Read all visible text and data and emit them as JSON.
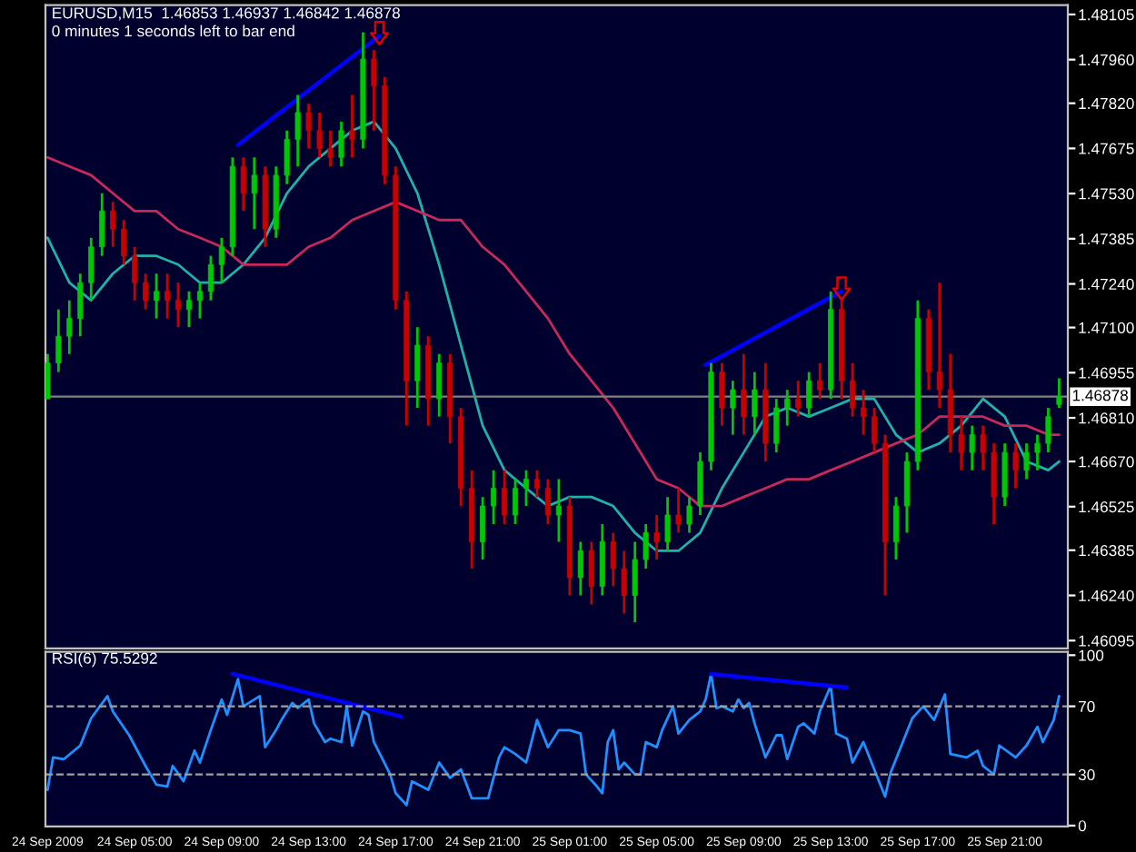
{
  "chart_data": [
    {
      "type": "candlestick",
      "annotations": [
        "EURUSD,M15  1.46853 1.46937 1.46842 1.46878",
        "0 minutes 1 seconds left to bar end"
      ],
      "x": [
        "2009-09-24T01:00",
        "2009-09-24T01:30",
        "2009-09-24T02:00",
        "2009-09-24T02:30",
        "2009-09-24T03:00",
        "2009-09-24T03:30",
        "2009-09-24T04:00",
        "2009-09-24T04:30",
        "2009-09-24T05:00",
        "2009-09-24T05:30",
        "2009-09-24T06:00",
        "2009-09-24T06:30",
        "2009-09-24T07:00",
        "2009-09-24T07:30",
        "2009-09-24T08:00",
        "2009-09-24T08:30",
        "2009-09-24T09:00",
        "2009-09-24T09:30",
        "2009-09-24T10:00",
        "2009-09-24T10:30",
        "2009-09-24T11:00",
        "2009-09-24T11:30",
        "2009-09-24T12:00",
        "2009-09-24T12:30",
        "2009-09-24T13:00",
        "2009-09-24T13:30",
        "2009-09-24T14:00",
        "2009-09-24T14:30",
        "2009-09-24T15:00",
        "2009-09-24T15:30",
        "2009-09-24T16:00",
        "2009-09-24T16:30",
        "2009-09-24T17:00",
        "2009-09-24T17:30",
        "2009-09-24T18:00",
        "2009-09-24T18:30",
        "2009-09-24T19:00",
        "2009-09-24T19:30",
        "2009-09-24T20:00",
        "2009-09-24T20:30",
        "2009-09-24T21:00",
        "2009-09-24T21:30",
        "2009-09-24T22:00",
        "2009-09-24T22:30",
        "2009-09-24T23:00",
        "2009-09-24T23:30",
        "2009-09-25T00:00",
        "2009-09-25T00:30",
        "2009-09-25T01:00",
        "2009-09-25T01:30",
        "2009-09-25T02:00",
        "2009-09-25T02:30",
        "2009-09-25T03:00",
        "2009-09-25T03:30",
        "2009-09-25T04:00",
        "2009-09-25T04:30",
        "2009-09-25T05:00",
        "2009-09-25T05:30",
        "2009-09-25T06:00",
        "2009-09-25T06:30",
        "2009-09-25T07:00",
        "2009-09-25T07:30",
        "2009-09-25T08:00",
        "2009-09-25T08:30",
        "2009-09-25T09:00",
        "2009-09-25T09:30",
        "2009-09-25T10:00",
        "2009-09-25T10:30",
        "2009-09-25T11:00",
        "2009-09-25T11:30",
        "2009-09-25T12:00",
        "2009-09-25T12:30",
        "2009-09-25T13:00",
        "2009-09-25T13:30",
        "2009-09-25T14:00",
        "2009-09-25T14:30",
        "2009-09-25T15:00",
        "2009-09-25T15:30",
        "2009-09-25T16:00",
        "2009-09-25T16:30",
        "2009-09-25T17:00",
        "2009-09-25T17:30",
        "2009-09-25T18:00",
        "2009-09-25T18:30",
        "2009-09-25T19:00",
        "2009-09-25T19:30",
        "2009-09-25T20:00",
        "2009-09-25T20:30",
        "2009-09-25T21:00",
        "2009-09-25T21:30",
        "2009-09-25T22:00",
        "2009-09-25T22:30",
        "2009-09-25T23:00",
        "2009-09-25T23:30"
      ],
      "ohlc": [
        [
          1.46871,
          1.47015,
          1.46871,
          1.46986
        ],
        [
          1.46986,
          1.47158,
          1.46957,
          1.47072
        ],
        [
          1.47072,
          1.47187,
          1.47015,
          1.47129
        ],
        [
          1.47129,
          1.47273,
          1.47072,
          1.47244
        ],
        [
          1.47244,
          1.47388,
          1.47187,
          1.47359
        ],
        [
          1.47359,
          1.47531,
          1.4733,
          1.47474
        ],
        [
          1.47474,
          1.47503,
          1.47359,
          1.47416
        ],
        [
          1.47416,
          1.47445,
          1.47302,
          1.4733
        ],
        [
          1.4733,
          1.47359,
          1.47187,
          1.47244
        ],
        [
          1.47244,
          1.47273,
          1.47158,
          1.47187
        ],
        [
          1.47187,
          1.47273,
          1.47129,
          1.47216
        ],
        [
          1.47216,
          1.47273,
          1.47129,
          1.47187
        ],
        [
          1.47187,
          1.47244,
          1.47101,
          1.47158
        ],
        [
          1.47158,
          1.47216,
          1.47101,
          1.47187
        ],
        [
          1.47187,
          1.47244,
          1.47129,
          1.47216
        ],
        [
          1.47216,
          1.4733,
          1.47187,
          1.47302
        ],
        [
          1.47302,
          1.47388,
          1.47244,
          1.47359
        ],
        [
          1.47359,
          1.47646,
          1.4733,
          1.47617
        ],
        [
          1.47617,
          1.47646,
          1.47474,
          1.47531
        ],
        [
          1.47531,
          1.47646,
          1.47416,
          1.47589
        ],
        [
          1.47589,
          1.47617,
          1.47359,
          1.47416
        ],
        [
          1.47416,
          1.47617,
          1.47388,
          1.47589
        ],
        [
          1.47589,
          1.47732,
          1.4756,
          1.47704
        ],
        [
          1.47704,
          1.47847,
          1.47617,
          1.4779
        ],
        [
          1.4779,
          1.47818,
          1.47675,
          1.47732
        ],
        [
          1.47732,
          1.4779,
          1.47646,
          1.47675
        ],
        [
          1.47675,
          1.47732,
          1.47617,
          1.47646
        ],
        [
          1.47646,
          1.47761,
          1.47617,
          1.47732
        ],
        [
          1.47732,
          1.47847,
          1.47646,
          1.47704
        ],
        [
          1.47704,
          1.48048,
          1.47675,
          1.47962
        ],
        [
          1.47962,
          1.4799,
          1.47732,
          1.47876
        ],
        [
          1.47876,
          1.47904,
          1.4756,
          1.47589
        ],
        [
          1.47589,
          1.47617,
          1.47158,
          1.47187
        ],
        [
          1.47187,
          1.47216,
          1.46785,
          1.46929
        ],
        [
          1.46929,
          1.47101,
          1.46842,
          1.47043
        ],
        [
          1.47043,
          1.47072,
          1.46785,
          1.46871
        ],
        [
          1.46871,
          1.47015,
          1.46814,
          1.46986
        ],
        [
          1.46986,
          1.47015,
          1.46728,
          1.46814
        ],
        [
          1.46814,
          1.46842,
          1.46527,
          1.46584
        ],
        [
          1.46584,
          1.46642,
          1.46326,
          1.46412
        ],
        [
          1.46412,
          1.46556,
          1.46355,
          1.46527
        ],
        [
          1.46527,
          1.46642,
          1.46469,
          1.46584
        ],
        [
          1.46584,
          1.46642,
          1.46469,
          1.46498
        ],
        [
          1.46498,
          1.46613,
          1.46469,
          1.46584
        ],
        [
          1.46584,
          1.46642,
          1.46527,
          1.46613
        ],
        [
          1.46613,
          1.46642,
          1.46556,
          1.46584
        ],
        [
          1.46584,
          1.46613,
          1.46469,
          1.46498
        ],
        [
          1.46498,
          1.46613,
          1.46412,
          1.46527
        ],
        [
          1.46527,
          1.46556,
          1.4624,
          1.46297
        ],
        [
          1.46297,
          1.46412,
          1.4624,
          1.46383
        ],
        [
          1.46383,
          1.46412,
          1.46211,
          1.46269
        ],
        [
          1.46269,
          1.46469,
          1.4624,
          1.46412
        ],
        [
          1.46412,
          1.46441,
          1.46269,
          1.46326
        ],
        [
          1.46326,
          1.46383,
          1.46182,
          1.4624
        ],
        [
          1.4624,
          1.46412,
          1.46154,
          1.46355
        ],
        [
          1.46355,
          1.46469,
          1.46326,
          1.46441
        ],
        [
          1.46441,
          1.46498,
          1.46355,
          1.46412
        ],
        [
          1.46412,
          1.46556,
          1.46383,
          1.46498
        ],
        [
          1.46498,
          1.46584,
          1.46441,
          1.46469
        ],
        [
          1.46469,
          1.46556,
          1.46441,
          1.46527
        ],
        [
          1.46527,
          1.46699,
          1.46498,
          1.4667
        ],
        [
          1.4667,
          1.46986,
          1.46642,
          1.46957
        ],
        [
          1.46957,
          1.46986,
          1.46785,
          1.46842
        ],
        [
          1.46842,
          1.46929,
          1.46756,
          1.469
        ],
        [
          1.469,
          1.47015,
          1.46756,
          1.46814
        ],
        [
          1.46814,
          1.46957,
          1.46756,
          1.469
        ],
        [
          1.469,
          1.46986,
          1.4667,
          1.46728
        ],
        [
          1.46728,
          1.46871,
          1.46699,
          1.46842
        ],
        [
          1.46842,
          1.469,
          1.46785,
          1.46871
        ],
        [
          1.46871,
          1.46929,
          1.46814,
          1.46842
        ],
        [
          1.46842,
          1.46957,
          1.46814,
          1.46929
        ],
        [
          1.46929,
          1.46986,
          1.46871,
          1.469
        ],
        [
          1.469,
          1.47216,
          1.46871,
          1.47158
        ],
        [
          1.47158,
          1.47187,
          1.46871,
          1.46929
        ],
        [
          1.46929,
          1.46986,
          1.46814,
          1.46842
        ],
        [
          1.46842,
          1.469,
          1.46756,
          1.46814
        ],
        [
          1.46814,
          1.46842,
          1.46699,
          1.46728
        ],
        [
          1.46728,
          1.46756,
          1.4624,
          1.46412
        ],
        [
          1.46412,
          1.46556,
          1.46355,
          1.46527
        ],
        [
          1.46527,
          1.46699,
          1.46441,
          1.4667
        ],
        [
          1.4667,
          1.47187,
          1.46642,
          1.47129
        ],
        [
          1.47129,
          1.47158,
          1.469,
          1.46957
        ],
        [
          1.46957,
          1.47244,
          1.46842,
          1.469
        ],
        [
          1.469,
          1.47015,
          1.46699,
          1.46756
        ],
        [
          1.46756,
          1.46814,
          1.46642,
          1.46699
        ],
        [
          1.46699,
          1.46785,
          1.46642,
          1.46756
        ],
        [
          1.46756,
          1.46785,
          1.46642,
          1.46699
        ],
        [
          1.46699,
          1.46728,
          1.46469,
          1.46556
        ],
        [
          1.46556,
          1.46728,
          1.46527,
          1.46699
        ],
        [
          1.46699,
          1.46728,
          1.46584,
          1.46642
        ],
        [
          1.46642,
          1.46728,
          1.46613,
          1.46699
        ],
        [
          1.46699,
          1.46756,
          1.46642,
          1.46728
        ],
        [
          1.46728,
          1.46842,
          1.46699,
          1.46814
        ],
        [
          1.46853,
          1.46937,
          1.46842,
          1.46878
        ]
      ],
      "series": [
        {
          "type": "line",
          "color": "#20b2aa",
          "x": [
            "2009-09-24T01:00",
            "2009-09-24T02:00",
            "2009-09-24T03:00",
            "2009-09-24T04:00",
            "2009-09-24T05:00",
            "2009-09-24T06:00",
            "2009-09-24T07:00",
            "2009-09-24T08:00",
            "2009-09-24T09:00",
            "2009-09-24T10:00",
            "2009-09-24T11:00",
            "2009-09-24T12:00",
            "2009-09-24T13:00",
            "2009-09-24T14:00",
            "2009-09-24T15:00",
            "2009-09-24T16:00",
            "2009-09-24T17:00",
            "2009-09-24T18:00",
            "2009-09-24T19:00",
            "2009-09-24T20:00",
            "2009-09-24T21:00",
            "2009-09-24T22:00",
            "2009-09-24T23:00",
            "2009-09-25T00:00",
            "2009-09-25T01:00",
            "2009-09-25T02:00",
            "2009-09-25T03:00",
            "2009-09-25T04:00",
            "2009-09-25T05:00",
            "2009-09-25T06:00",
            "2009-09-25T07:00",
            "2009-09-25T08:00",
            "2009-09-25T09:00",
            "2009-09-25T10:00",
            "2009-09-25T11:00",
            "2009-09-25T12:00",
            "2009-09-25T13:00",
            "2009-09-25T14:00",
            "2009-09-25T15:00",
            "2009-09-25T16:00",
            "2009-09-25T17:00",
            "2009-09-25T18:00",
            "2009-09-25T19:00",
            "2009-09-25T20:00",
            "2009-09-25T21:00",
            "2009-09-25T22:00",
            "2009-09-25T23:00",
            "2009-09-25T23:30"
          ],
          "values": [
            1.47388,
            1.47244,
            1.47187,
            1.47273,
            1.4733,
            1.4733,
            1.47302,
            1.47244,
            1.47244,
            1.47302,
            1.47388,
            1.47531,
            1.47617,
            1.47675,
            1.47732,
            1.47761,
            1.47675,
            1.47531,
            1.47302,
            1.47043,
            1.46785,
            1.46642,
            1.46584,
            1.46527,
            1.46556,
            1.46556,
            1.46527,
            1.46441,
            1.46383,
            1.46383,
            1.46441,
            1.46584,
            1.46699,
            1.46814,
            1.46842,
            1.46814,
            1.46842,
            1.46871,
            1.46871,
            1.46756,
            1.46699,
            1.46728,
            1.46785,
            1.46871,
            1.46814,
            1.4667,
            1.46642,
            1.4667
          ]
        },
        {
          "type": "line",
          "color": "#c8285a",
          "x": [
            "2009-09-24T01:00",
            "2009-09-24T02:00",
            "2009-09-24T03:00",
            "2009-09-24T04:00",
            "2009-09-24T05:00",
            "2009-09-24T06:00",
            "2009-09-24T07:00",
            "2009-09-24T08:00",
            "2009-09-24T09:00",
            "2009-09-24T10:00",
            "2009-09-24T11:00",
            "2009-09-24T12:00",
            "2009-09-24T13:00",
            "2009-09-24T14:00",
            "2009-09-24T15:00",
            "2009-09-24T16:00",
            "2009-09-24T17:00",
            "2009-09-24T18:00",
            "2009-09-24T19:00",
            "2009-09-24T20:00",
            "2009-09-24T21:00",
            "2009-09-24T22:00",
            "2009-09-24T23:00",
            "2009-09-25T00:00",
            "2009-09-25T01:00",
            "2009-09-25T02:00",
            "2009-09-25T03:00",
            "2009-09-25T04:00",
            "2009-09-25T05:00",
            "2009-09-25T06:00",
            "2009-09-25T07:00",
            "2009-09-25T08:00",
            "2009-09-25T09:00",
            "2009-09-25T10:00",
            "2009-09-25T11:00",
            "2009-09-25T12:00",
            "2009-09-25T13:00",
            "2009-09-25T14:00",
            "2009-09-25T15:00",
            "2009-09-25T16:00",
            "2009-09-25T17:00",
            "2009-09-25T18:00",
            "2009-09-25T19:00",
            "2009-09-25T20:00",
            "2009-09-25T21:00",
            "2009-09-25T22:00",
            "2009-09-25T23:00",
            "2009-09-25T23:30"
          ],
          "values": [
            1.47646,
            1.47617,
            1.47589,
            1.47531,
            1.47474,
            1.47474,
            1.47416,
            1.47388,
            1.47359,
            1.47302,
            1.47302,
            1.47302,
            1.47359,
            1.47388,
            1.47445,
            1.47474,
            1.47503,
            1.47474,
            1.47445,
            1.47445,
            1.47359,
            1.47302,
            1.47216,
            1.47129,
            1.47015,
            1.46929,
            1.46842,
            1.46728,
            1.46613,
            1.46584,
            1.46527,
            1.46527,
            1.46556,
            1.46584,
            1.46613,
            1.46613,
            1.46642,
            1.4667,
            1.46699,
            1.46728,
            1.46756,
            1.46814,
            1.46814,
            1.46814,
            1.46785,
            1.46785,
            1.46756,
            1.46756
          ]
        },
        {
          "type": "line",
          "color": "#0000ff",
          "x": [
            "2009-09-24T09:45",
            "2009-09-24T16:15"
          ],
          "values": [
            1.47686,
            1.48036
          ]
        },
        {
          "type": "line",
          "color": "#0000ff",
          "x": [
            "2009-09-25T07:15",
            "2009-09-25T13:30"
          ],
          "values": [
            1.4698,
            1.47216
          ]
        }
      ],
      "ref_lines": [
        {
          "axis": "y",
          "value": 1.46878,
          "label": "1.46878",
          "color": "#808080"
        }
      ],
      "xlim": [
        "2009-09-24T00:54",
        "2009-09-25T23:54"
      ],
      "ylim": [
        1.4607,
        1.48135
      ],
      "yticks": [
        1.48105,
        {
          "value": 1.4796,
          "label": "1.47960"
        },
        {
          "value": 1.4782,
          "label": "1.47820"
        },
        1.47675,
        {
          "value": 1.4753,
          "label": "1.47530"
        },
        1.47385,
        {
          "value": 1.4724,
          "label": "1.47240"
        },
        {
          "value": 1.471,
          "label": "1.47100"
        },
        1.46955,
        {
          "value": 1.4681,
          "label": "1.46810"
        },
        {
          "value": 1.4667,
          "label": "1.46670"
        },
        1.46525,
        1.46385,
        {
          "value": 1.4624,
          "label": "1.46240"
        },
        1.46095
      ],
      "tick_labels": "y"
    },
    {
      "type": "line",
      "annotations": [
        "RSI(6) 75.5292"
      ],
      "series": [
        {
          "type": "line",
          "color": "#1e90ff",
          "x": [
            "2009-09-24T01:00",
            "2009-09-24T01:15",
            "2009-09-24T01:45",
            "2009-09-24T02:30",
            "2009-09-24T03:00",
            "2009-09-24T03:45",
            "2009-09-24T04:00",
            "2009-09-24T04:45",
            "2009-09-24T05:30",
            "2009-09-24T06:00",
            "2009-09-24T06:30",
            "2009-09-24T06:45",
            "2009-09-24T07:15",
            "2009-09-24T07:45",
            "2009-09-24T08:00",
            "2009-09-24T08:30",
            "2009-09-24T09:00",
            "2009-09-24T09:15",
            "2009-09-24T09:45",
            "2009-09-24T10:00",
            "2009-09-24T10:45",
            "2009-09-24T11:00",
            "2009-09-24T11:30",
            "2009-09-24T11:45",
            "2009-09-24T12:15",
            "2009-09-24T12:30",
            "2009-09-24T13:00",
            "2009-09-24T13:15",
            "2009-09-24T13:45",
            "2009-09-24T14:00",
            "2009-09-24T14:30",
            "2009-09-24T14:45",
            "2009-09-24T15:00",
            "2009-09-24T15:30",
            "2009-09-24T15:45",
            "2009-09-24T16:00",
            "2009-09-24T16:45",
            "2009-09-24T17:00",
            "2009-09-24T17:30",
            "2009-09-24T17:45",
            "2009-09-24T18:30",
            "2009-09-24T19:00",
            "2009-09-24T19:30",
            "2009-09-24T20:00",
            "2009-09-24T20:30",
            "2009-09-24T21:15",
            "2009-09-24T21:45",
            "2009-09-24T22:00",
            "2009-09-24T22:30",
            "2009-09-24T23:00",
            "2009-09-24T23:30",
            "2009-09-25T00:00",
            "2009-09-25T00:30",
            "2009-09-25T01:00",
            "2009-09-25T01:30",
            "2009-09-25T01:45",
            "2009-09-25T02:15",
            "2009-09-25T02:30",
            "2009-09-25T02:45",
            "2009-09-25T03:00",
            "2009-09-25T03:15",
            "2009-09-25T03:30",
            "2009-09-25T04:00",
            "2009-09-25T04:15",
            "2009-09-25T04:30",
            "2009-09-25T05:00",
            "2009-09-25T05:15",
            "2009-09-25T05:45",
            "2009-09-25T06:00",
            "2009-09-25T06:30",
            "2009-09-25T07:00",
            "2009-09-25T07:15",
            "2009-09-25T07:30",
            "2009-09-25T07:45",
            "2009-09-25T08:00",
            "2009-09-25T08:30",
            "2009-09-25T08:45",
            "2009-09-25T09:00",
            "2009-09-25T09:15",
            "2009-09-25T09:30",
            "2009-09-25T10:00",
            "2009-09-25T10:30",
            "2009-09-25T10:45",
            "2009-09-25T11:00",
            "2009-09-25T11:30",
            "2009-09-25T11:45",
            "2009-09-25T12:15",
            "2009-09-25T12:30",
            "2009-09-25T13:00",
            "2009-09-25T13:15",
            "2009-09-25T13:45",
            "2009-09-25T14:00",
            "2009-09-25T14:30",
            "2009-09-25T15:00",
            "2009-09-25T15:30",
            "2009-09-25T15:45",
            "2009-09-25T16:15",
            "2009-09-25T16:45",
            "2009-09-25T17:15",
            "2009-09-25T17:45",
            "2009-09-25T18:15",
            "2009-09-25T18:30",
            "2009-09-25T19:15",
            "2009-09-25T19:45",
            "2009-09-25T20:00",
            "2009-09-25T20:30",
            "2009-09-25T20:45",
            "2009-09-25T21:30",
            "2009-09-25T22:00",
            "2009-09-25T22:30",
            "2009-09-25T22:45",
            "2009-09-25T23:15",
            "2009-09-25T23:30"
          ],
          "values": [
            21,
            40,
            39,
            47,
            63,
            76,
            67,
            53,
            35,
            24,
            23,
            35,
            26,
            44,
            37,
            56,
            74,
            65,
            86,
            70,
            76,
            46,
            56,
            62,
            72,
            69,
            74,
            60,
            49,
            51,
            49,
            70,
            47,
            67,
            65,
            49,
            30,
            19,
            12,
            26,
            21,
            37,
            28,
            33,
            16,
            16,
            40,
            46,
            42,
            37,
            62,
            46,
            56,
            56,
            54,
            30,
            23,
            19,
            49,
            56,
            33,
            37,
            30,
            30,
            49,
            46,
            56,
            70,
            54,
            62,
            67,
            74,
            89,
            69,
            70,
            67,
            74,
            69,
            72,
            60,
            40,
            53,
            53,
            39,
            58,
            60,
            54,
            67,
            82,
            54,
            51,
            37,
            49,
            33,
            17,
            31,
            47,
            63,
            70,
            62,
            77,
            42,
            40,
            44,
            35,
            30,
            47,
            40,
            47,
            58,
            49,
            62,
            76
          ]
        },
        {
          "type": "line",
          "color": "#0000ff",
          "x": [
            "2009-09-24T09:30",
            "2009-09-24T17:15"
          ],
          "values": [
            89,
            64
          ]
        },
        {
          "type": "line",
          "color": "#0000ff",
          "x": [
            "2009-09-25T07:30",
            "2009-09-25T13:45"
          ],
          "values": [
            89,
            81
          ]
        }
      ],
      "ref_lines": [
        {
          "axis": "y",
          "value": 70,
          "color": "#a0a0a0",
          "line_style": "dashed"
        },
        {
          "axis": "y",
          "value": 30,
          "color": "#a0a0a0",
          "line_style": "dashed"
        }
      ],
      "xlim": [
        "2009-09-24T00:54",
        "2009-09-25T23:54"
      ],
      "xticks": [
        {
          "value": "2009-09-24T01:00",
          "label": "24 Sep 2009"
        },
        {
          "value": "2009-09-24T05:00",
          "label": "24 Sep 05:00"
        },
        {
          "value": "2009-09-24T09:00",
          "label": "24 Sep 09:00"
        },
        {
          "value": "2009-09-24T13:00",
          "label": "24 Sep 13:00"
        },
        {
          "value": "2009-09-24T17:00",
          "label": "24 Sep 17:00"
        },
        {
          "value": "2009-09-24T21:00",
          "label": "24 Sep 21:00"
        },
        {
          "value": "2009-09-25T01:00",
          "label": "25 Sep 01:00"
        },
        {
          "value": "2009-09-25T05:00",
          "label": "25 Sep 05:00"
        },
        {
          "value": "2009-09-25T09:00",
          "label": "25 Sep 09:00"
        },
        {
          "value": "2009-09-25T13:00",
          "label": "25 Sep 13:00"
        },
        {
          "value": "2009-09-25T17:00",
          "label": "25 Sep 17:00"
        },
        {
          "value": "2009-09-25T21:00",
          "label": "25 Sep 21:00"
        }
      ],
      "ylim": [
        -0.5,
        102
      ],
      "yticks": [
        0,
        30,
        70,
        100
      ]
    }
  ]
}
